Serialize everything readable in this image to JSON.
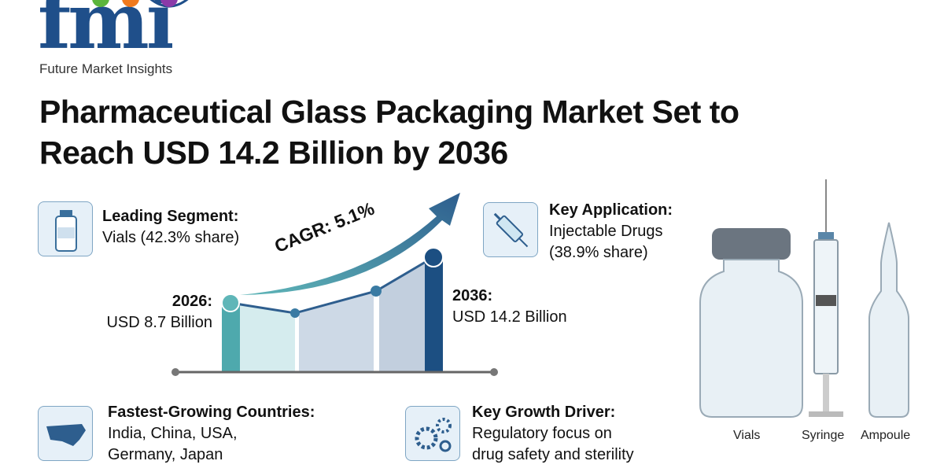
{
  "brand": {
    "logo_text": "fmi",
    "tagline": "Future Market Insights",
    "dot_colors": [
      "#5bb53c",
      "#f07a1e",
      "#8a3aa8"
    ],
    "color": "#1f4f8a"
  },
  "title": {
    "line1": "Pharmaceutical Glass Packaging Market Set to",
    "line2": "Reach USD 14.2 Billion by 2036"
  },
  "leading_segment": {
    "icon": "vaccine-vial-icon",
    "heading": "Leading Segment:",
    "value": "Vials (42.3% share)"
  },
  "key_application": {
    "icon": "syringe-icon",
    "heading": "Key Application:",
    "value1": "Injectable Drugs",
    "value2": "(38.9% share)"
  },
  "fastest_growing": {
    "icon": "usa-map-icon",
    "heading": "Fastest-Growing Countries:",
    "value1": "India, China, USA,",
    "value2": "Germany, Japan"
  },
  "growth_driver": {
    "icon": "gears-icon",
    "heading": "Key Growth Driver:",
    "value1": "Regulatory focus on",
    "value2": "drug safety and sterility"
  },
  "growth": {
    "cagr": "CAGR: 5.1%",
    "start_year": "2026:",
    "start_value": "USD 8.7 Billion",
    "end_year": "2036:",
    "end_value": "USD 14.2 Billion"
  },
  "products": {
    "labels": [
      "Vials",
      "Syringe",
      "Ampoule"
    ]
  }
}
